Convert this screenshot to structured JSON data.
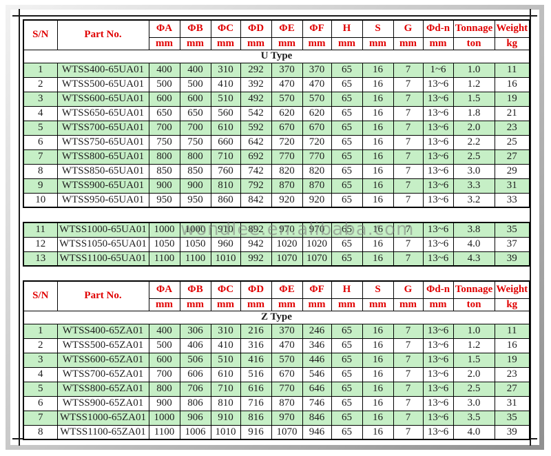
{
  "watermark": "wondlee.en.alibaba.com",
  "colors": {
    "header_red": "#e00000",
    "row_green": "#c6efc6",
    "grid": "#000000"
  },
  "header": {
    "sn": "S/N",
    "part_no": "Part No.",
    "dim_columns": [
      "ΦA",
      "ΦB",
      "ΦC",
      "ΦD",
      "ΦE",
      "ΦF",
      "H",
      "S",
      "G",
      "Φd-n"
    ],
    "dim_unit": "mm",
    "tonnage_label": "Tonnage",
    "tonnage_unit": "ton",
    "weight_label": "Weight",
    "weight_unit": "kg"
  },
  "u_table": {
    "type_label": "U Type",
    "rows": [
      {
        "sn": "1",
        "part": "WTSS400-65UA01",
        "dims": [
          "400",
          "400",
          "310",
          "292",
          "370",
          "370",
          "65",
          "16",
          "7",
          "1~6"
        ],
        "tonnage": "1.0",
        "weight": "11"
      },
      {
        "sn": "2",
        "part": "WTSS500-65UA01",
        "dims": [
          "500",
          "500",
          "410",
          "392",
          "470",
          "470",
          "65",
          "16",
          "7",
          "13~6"
        ],
        "tonnage": "1.2",
        "weight": "16"
      },
      {
        "sn": "3",
        "part": "WTSS600-65UA01",
        "dims": [
          "600",
          "600",
          "510",
          "492",
          "570",
          "570",
          "65",
          "16",
          "7",
          "13~6"
        ],
        "tonnage": "1.5",
        "weight": "19"
      },
      {
        "sn": "4",
        "part": "WTSS650-65UA01",
        "dims": [
          "650",
          "650",
          "560",
          "542",
          "620",
          "620",
          "65",
          "16",
          "7",
          "13~6"
        ],
        "tonnage": "1.8",
        "weight": "21"
      },
      {
        "sn": "5",
        "part": "WTSS700-65UA01",
        "dims": [
          "700",
          "700",
          "610",
          "592",
          "670",
          "670",
          "65",
          "16",
          "7",
          "13~6"
        ],
        "tonnage": "2.0",
        "weight": "23"
      },
      {
        "sn": "6",
        "part": "WTSS750-65UA01",
        "dims": [
          "750",
          "750",
          "660",
          "642",
          "720",
          "720",
          "65",
          "16",
          "7",
          "13~6"
        ],
        "tonnage": "2.2",
        "weight": "25"
      },
      {
        "sn": "7",
        "part": "WTSS800-65UA01",
        "dims": [
          "800",
          "800",
          "710",
          "692",
          "770",
          "770",
          "65",
          "16",
          "7",
          "13~6"
        ],
        "tonnage": "2.5",
        "weight": "27"
      },
      {
        "sn": "8",
        "part": "WTSS850-65UA01",
        "dims": [
          "850",
          "850",
          "760",
          "742",
          "820",
          "820",
          "65",
          "16",
          "7",
          "13~6"
        ],
        "tonnage": "3.0",
        "weight": "29"
      },
      {
        "sn": "9",
        "part": "WTSS900-65UA01",
        "dims": [
          "900",
          "900",
          "810",
          "792",
          "870",
          "870",
          "65",
          "16",
          "7",
          "13~6"
        ],
        "tonnage": "3.3",
        "weight": "31"
      },
      {
        "sn": "10",
        "part": "WTSS950-65UA01",
        "dims": [
          "950",
          "950",
          "860",
          "842",
          "920",
          "920",
          "65",
          "16",
          "7",
          "13~6"
        ],
        "tonnage": "3.2",
        "weight": "33"
      },
      {
        "sn": "11",
        "part": "WTSS1000-65UA01",
        "dims": [
          "1000",
          "1000",
          "910",
          "892",
          "970",
          "970",
          "65",
          "16",
          "7",
          "13~6"
        ],
        "tonnage": "3.8",
        "weight": "35"
      },
      {
        "sn": "12",
        "part": "WTSS1050-65UA01",
        "dims": [
          "1050",
          "1050",
          "960",
          "942",
          "1020",
          "1020",
          "65",
          "16",
          "7",
          "13~6"
        ],
        "tonnage": "4.0",
        "weight": "37"
      },
      {
        "sn": "13",
        "part": "WTSS1100-65UA01",
        "dims": [
          "1100",
          "1100",
          "1010",
          "992",
          "1070",
          "1070",
          "65",
          "16",
          "7",
          "13~6"
        ],
        "tonnage": "4.3",
        "weight": "39"
      }
    ],
    "split_after_sn": "10"
  },
  "z_table": {
    "type_label": "Z Type",
    "rows": [
      {
        "sn": "1",
        "part": "WTSS400-65ZA01",
        "dims": [
          "400",
          "306",
          "310",
          "216",
          "370",
          "246",
          "65",
          "16",
          "7",
          "13~6"
        ],
        "tonnage": "1.0",
        "weight": "11"
      },
      {
        "sn": "2",
        "part": "WTSS500-65ZA01",
        "dims": [
          "500",
          "406",
          "410",
          "316",
          "470",
          "346",
          "65",
          "16",
          "7",
          "13~6"
        ],
        "tonnage": "1.2",
        "weight": "16"
      },
      {
        "sn": "3",
        "part": "WTSS600-65ZA01",
        "dims": [
          "600",
          "506",
          "510",
          "416",
          "570",
          "446",
          "65",
          "16",
          "7",
          "13~6"
        ],
        "tonnage": "1.5",
        "weight": "19"
      },
      {
        "sn": "4",
        "part": "WTSS700-65ZA01",
        "dims": [
          "700",
          "606",
          "610",
          "516",
          "670",
          "546",
          "65",
          "16",
          "7",
          "13~6"
        ],
        "tonnage": "2.0",
        "weight": "23"
      },
      {
        "sn": "5",
        "part": "WTSS800-65ZA01",
        "dims": [
          "800",
          "706",
          "710",
          "616",
          "770",
          "646",
          "65",
          "16",
          "7",
          "13~6"
        ],
        "tonnage": "2.5",
        "weight": "27"
      },
      {
        "sn": "6",
        "part": "WTSS900-65ZA01",
        "dims": [
          "900",
          "806",
          "810",
          "716",
          "870",
          "746",
          "65",
          "16",
          "7",
          "13~6"
        ],
        "tonnage": "3.0",
        "weight": "31"
      },
      {
        "sn": "7",
        "part": "WTSS1000-65ZA01",
        "dims": [
          "1000",
          "906",
          "910",
          "816",
          "970",
          "846",
          "65",
          "16",
          "7",
          "13~6"
        ],
        "tonnage": "3.5",
        "weight": "35"
      },
      {
        "sn": "8",
        "part": "WTSS1100-65ZA01",
        "dims": [
          "1100",
          "1006",
          "1010",
          "916",
          "1070",
          "946",
          "65",
          "16",
          "7",
          "13~6"
        ],
        "tonnage": "4.0",
        "weight": "39"
      }
    ]
  }
}
